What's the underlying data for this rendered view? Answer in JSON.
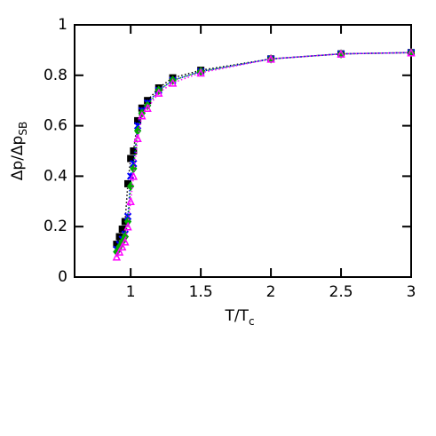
{
  "chart_data": {
    "type": "line",
    "xlabel": {
      "main": "T/T",
      "sub": "c"
    },
    "ylabel": {
      "main": "Δp/Δp",
      "sub": "SB"
    },
    "x": [
      0.9,
      0.92,
      0.94,
      0.96,
      0.98,
      1.0,
      1.02,
      1.05,
      1.08,
      1.12,
      1.2,
      1.3,
      1.5,
      2.0,
      2.5,
      3.0
    ],
    "series": [
      {
        "color": "#000000",
        "marker": "square",
        "values": [
          0.13,
          0.16,
          0.19,
          0.22,
          0.37,
          0.47,
          0.5,
          0.62,
          0.67,
          0.7,
          0.75,
          0.79,
          0.82,
          0.865,
          0.885,
          0.89
        ]
      },
      {
        "color": "#0000ff",
        "marker": "cross",
        "values": [
          0.11,
          0.13,
          0.15,
          0.17,
          0.24,
          0.4,
          0.45,
          0.6,
          0.66,
          0.69,
          0.74,
          0.78,
          0.815,
          0.865,
          0.885,
          0.89
        ]
      },
      {
        "color": "#00aa00",
        "marker": "diamond",
        "values": [
          0.1,
          0.12,
          0.14,
          0.16,
          0.22,
          0.36,
          0.43,
          0.58,
          0.65,
          0.68,
          0.74,
          0.78,
          0.815,
          0.865,
          0.885,
          0.89
        ]
      },
      {
        "color": "#ff00ff",
        "marker": "triangle",
        "values": [
          0.08,
          0.1,
          0.12,
          0.14,
          0.2,
          0.3,
          0.4,
          0.55,
          0.64,
          0.67,
          0.73,
          0.77,
          0.81,
          0.865,
          0.885,
          0.89
        ]
      }
    ],
    "xlim": [
      0.6,
      3.0
    ],
    "xticks": [
      1,
      1.5,
      2,
      2.5,
      3
    ],
    "ylim": [
      0,
      1
    ],
    "yticks": [
      0,
      0.2,
      0.4,
      0.6,
      0.8,
      1
    ]
  }
}
